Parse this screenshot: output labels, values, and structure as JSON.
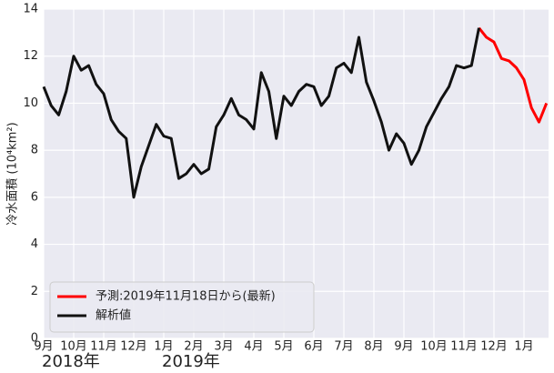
{
  "chart_data": {
    "type": "line",
    "y_label": "冷水面積 (10⁴km²)",
    "categories": [
      "9月",
      null,
      null,
      null,
      "10月",
      null,
      null,
      null,
      "11月",
      null,
      null,
      null,
      "12月",
      null,
      null,
      null,
      "1月",
      null,
      null,
      null,
      "2月",
      null,
      null,
      null,
      "3月",
      null,
      null,
      null,
      "4月",
      null,
      null,
      null,
      "5月",
      null,
      null,
      null,
      "6月",
      null,
      null,
      null,
      "7月",
      null,
      null,
      null,
      "8月",
      null,
      null,
      null,
      "9月",
      null,
      null,
      null,
      "10月",
      null,
      null,
      null,
      "11月",
      null,
      null,
      null,
      "12月",
      null,
      null,
      null,
      "1月",
      null,
      null,
      null
    ],
    "year_labels": [
      {
        "at": 0,
        "label": "2018年"
      },
      {
        "at": 16,
        "label": "2019年"
      }
    ],
    "series": [
      {
        "name": "予測:2019年11月18日から(最新)",
        "color": "#ff0000",
        "values": [
          null,
          null,
          null,
          null,
          null,
          null,
          null,
          null,
          null,
          null,
          null,
          null,
          null,
          null,
          null,
          null,
          null,
          null,
          null,
          null,
          null,
          null,
          null,
          null,
          null,
          null,
          null,
          null,
          null,
          null,
          null,
          null,
          null,
          null,
          null,
          null,
          null,
          null,
          null,
          null,
          null,
          null,
          null,
          null,
          null,
          null,
          null,
          null,
          null,
          null,
          null,
          null,
          null,
          null,
          null,
          null,
          null,
          null,
          13.2,
          12.8,
          12.6,
          11.9,
          11.8,
          11.5,
          11.0,
          9.8,
          9.2,
          10.0
        ]
      },
      {
        "name": "解析値",
        "color": "#111111",
        "values": [
          10.7,
          9.9,
          9.5,
          10.5,
          12.0,
          11.4,
          11.6,
          10.8,
          10.4,
          9.3,
          8.8,
          8.5,
          6.0,
          7.3,
          8.2,
          9.1,
          8.6,
          8.5,
          6.8,
          7.0,
          7.4,
          7.0,
          7.2,
          9.0,
          9.5,
          10.2,
          9.5,
          9.3,
          8.9,
          11.3,
          10.5,
          8.5,
          10.3,
          9.9,
          10.5,
          10.8,
          10.7,
          9.9,
          10.3,
          11.5,
          11.7,
          11.3,
          12.8,
          10.9,
          10.1,
          9.2,
          8.0,
          8.7,
          8.3,
          7.4,
          8.0,
          9.0,
          9.6,
          10.2,
          10.7,
          11.6,
          11.5,
          11.6,
          13.2,
          null,
          null,
          null,
          null,
          null,
          null,
          null,
          null,
          null
        ]
      }
    ],
    "ylim": [
      0,
      14
    ],
    "yticks": [
      0,
      2,
      4,
      6,
      8,
      10,
      12,
      14
    ],
    "grid": true,
    "legend": "lower left"
  }
}
